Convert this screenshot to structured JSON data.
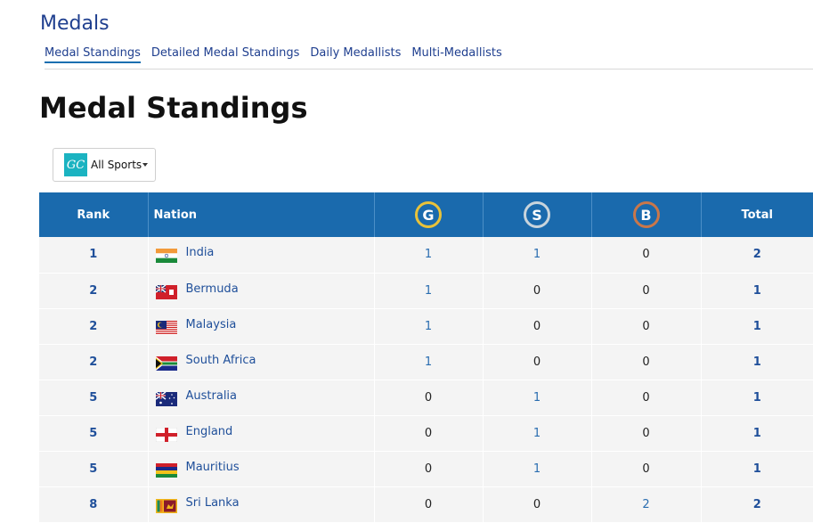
{
  "header": {
    "section_title": "Medals",
    "tabs": [
      {
        "label": "Medal Standings",
        "active": true
      },
      {
        "label": "Detailed Medal Standings",
        "active": false
      },
      {
        "label": "Daily Medallists",
        "active": false
      },
      {
        "label": "Multi-Medallists",
        "active": false
      }
    ]
  },
  "page_title": "Medal Standings",
  "filter": {
    "logo_text": "GC",
    "selected": "All Sports"
  },
  "table": {
    "headers": {
      "rank": "Rank",
      "nation": "Nation",
      "gold": "G",
      "silver": "S",
      "bronze": "B",
      "total": "Total"
    },
    "rows": [
      {
        "rank": "1",
        "nation": "India",
        "gold": "1",
        "silver": "1",
        "bronze": "0",
        "total": "2",
        "flag": "india"
      },
      {
        "rank": "2",
        "nation": "Bermuda",
        "gold": "1",
        "silver": "0",
        "bronze": "0",
        "total": "1",
        "flag": "bermuda"
      },
      {
        "rank": "2",
        "nation": "Malaysia",
        "gold": "1",
        "silver": "0",
        "bronze": "0",
        "total": "1",
        "flag": "malaysia"
      },
      {
        "rank": "2",
        "nation": "South Africa",
        "gold": "1",
        "silver": "0",
        "bronze": "0",
        "total": "1",
        "flag": "south-africa"
      },
      {
        "rank": "5",
        "nation": "Australia",
        "gold": "0",
        "silver": "1",
        "bronze": "0",
        "total": "1",
        "flag": "australia"
      },
      {
        "rank": "5",
        "nation": "England",
        "gold": "0",
        "silver": "1",
        "bronze": "0",
        "total": "1",
        "flag": "england"
      },
      {
        "rank": "5",
        "nation": "Mauritius",
        "gold": "0",
        "silver": "1",
        "bronze": "0",
        "total": "1",
        "flag": "mauritius"
      },
      {
        "rank": "8",
        "nation": "Sri Lanka",
        "gold": "0",
        "silver": "0",
        "bronze": "2",
        "total": "2",
        "flag": "sri-lanka"
      }
    ]
  },
  "colors": {
    "header_blue": "#1a6aad",
    "gold_ring": "#e8c23a",
    "silver_ring": "#c8d4dc",
    "bronze_ring": "#c9774a",
    "link_blue": "#1f4f9a"
  }
}
